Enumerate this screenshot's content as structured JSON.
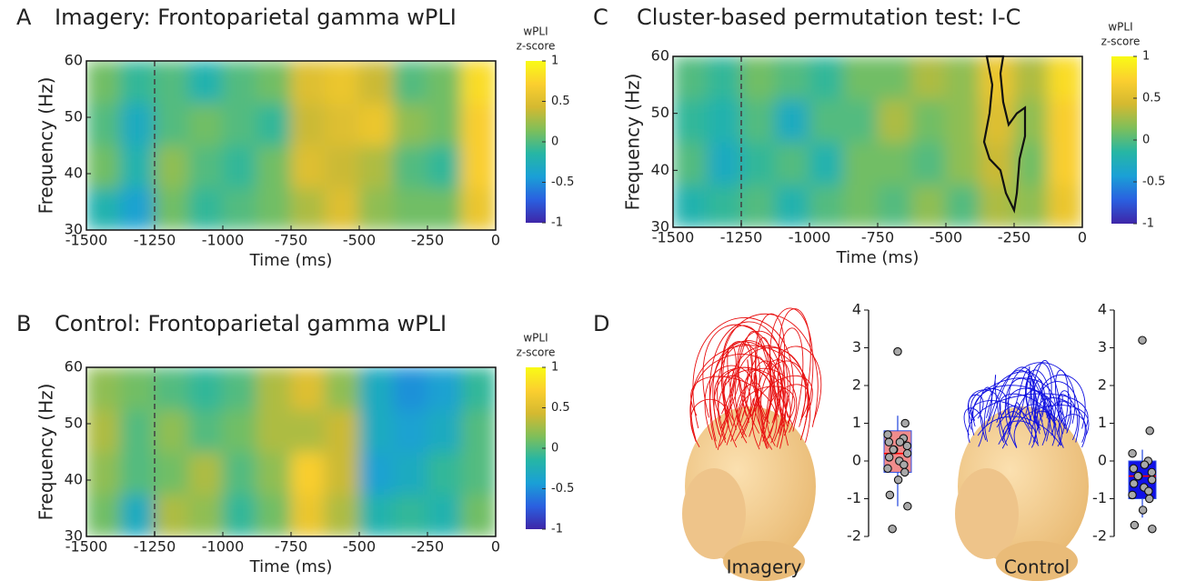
{
  "chart_data": [
    {
      "type": "heatmap",
      "label": "A",
      "title": "Imagery: Frontoparietal gamma wPLI",
      "xlabel": "Time (ms)",
      "ylabel": "Frequency (Hz)",
      "xlim": [
        -1500,
        0
      ],
      "xticks": [
        -1500,
        -1250,
        -1000,
        -750,
        -500,
        -250,
        0
      ],
      "ylim": [
        30,
        60
      ],
      "yticks": [
        30,
        40,
        50,
        60
      ],
      "marker_x": -1250,
      "colorbar_label": [
        "wPLI",
        "z-score"
      ],
      "clim": [
        -1,
        1
      ],
      "cticks": [
        1,
        0.5,
        0,
        -0.5,
        -1
      ],
      "colormap": [
        "#3e26a8",
        "#2a60e0",
        "#1aa0d6",
        "#26b6a4",
        "#7ebf5a",
        "#d4b930",
        "#fbcf2f",
        "#f9fb15"
      ],
      "z": [
        [
          -0.2,
          -0.4,
          0.1,
          -0.1,
          0.0,
          0.1,
          0.3,
          0.5,
          0.2,
          0.1,
          0.1,
          0.6
        ],
        [
          0.1,
          -0.2,
          0.2,
          0.0,
          -0.1,
          0.1,
          0.5,
          0.4,
          0.3,
          0.0,
          -0.1,
          0.7
        ],
        [
          0.0,
          -0.3,
          0.0,
          0.1,
          0.0,
          -0.1,
          0.4,
          0.5,
          0.6,
          0.2,
          0.1,
          0.7
        ],
        [
          0.1,
          -0.1,
          0.0,
          -0.2,
          0.0,
          0.1,
          0.5,
          0.6,
          0.4,
          0.0,
          0.1,
          0.8
        ]
      ]
    },
    {
      "type": "heatmap",
      "label": "B",
      "title": "Control: Frontoparietal gamma wPLI",
      "xlabel": "Time (ms)",
      "ylabel": "Frequency (Hz)",
      "xlim": [
        -1500,
        0
      ],
      "xticks": [
        -1500,
        -1250,
        -1000,
        -750,
        -500,
        -250,
        0
      ],
      "ylim": [
        30,
        60
      ],
      "yticks": [
        30,
        40,
        50,
        60
      ],
      "marker_x": -1250,
      "colorbar_label": [
        "wPLI",
        "z-score"
      ],
      "clim": [
        -1,
        1
      ],
      "cticks": [
        1,
        0.5,
        0,
        -0.5,
        -1
      ],
      "colormap": [
        "#3e26a8",
        "#2a60e0",
        "#1aa0d6",
        "#26b6a4",
        "#7ebf5a",
        "#d4b930",
        "#fbcf2f",
        "#f9fb15"
      ],
      "z": [
        [
          0.1,
          -0.3,
          0.3,
          0.2,
          -0.1,
          0.1,
          0.6,
          0.3,
          -0.2,
          -0.1,
          -0.2,
          0.1
        ],
        [
          0.2,
          0.0,
          0.1,
          0.3,
          0.0,
          0.2,
          0.7,
          0.4,
          -0.4,
          -0.3,
          -0.1,
          0.0
        ],
        [
          0.3,
          0.0,
          0.2,
          0.0,
          0.1,
          0.3,
          0.3,
          0.4,
          -0.3,
          -0.4,
          -0.3,
          0.0
        ],
        [
          0.2,
          0.1,
          0.0,
          -0.1,
          0.0,
          0.3,
          0.5,
          0.2,
          -0.3,
          -0.5,
          -0.4,
          -0.1
        ]
      ]
    },
    {
      "type": "heatmap",
      "label": "C",
      "title": "Cluster-based permutation test: I-C",
      "xlabel": "Time (ms)",
      "ylabel": "Frequency (Hz)",
      "xlim": [
        -1500,
        0
      ],
      "xticks": [
        -1500,
        -1250,
        -1000,
        -750,
        -500,
        -250,
        0
      ],
      "ylim": [
        30,
        60
      ],
      "yticks": [
        30,
        40,
        50,
        60
      ],
      "marker_x": -1250,
      "colorbar_label": [
        "wPLI",
        "z-score"
      ],
      "clim": [
        -1,
        1
      ],
      "cticks": [
        1,
        0.5,
        0,
        -0.5,
        -1
      ],
      "colormap": [
        "#3e26a8",
        "#2a60e0",
        "#1aa0d6",
        "#26b6a4",
        "#7ebf5a",
        "#d4b930",
        "#fbcf2f",
        "#f9fb15"
      ],
      "z": [
        [
          -0.2,
          -0.1,
          0.0,
          -0.2,
          0.0,
          0.1,
          0.0,
          0.2,
          0.0,
          0.3,
          0.2,
          0.6
        ],
        [
          0.0,
          -0.3,
          -0.1,
          0.0,
          -0.2,
          0.1,
          0.1,
          0.0,
          0.2,
          0.4,
          0.1,
          0.7
        ],
        [
          -0.1,
          -0.2,
          0.0,
          -0.3,
          0.0,
          0.0,
          0.3,
          0.1,
          0.2,
          0.5,
          0.2,
          0.7
        ],
        [
          0.0,
          -0.1,
          0.1,
          0.0,
          -0.1,
          0.1,
          0.1,
          0.3,
          0.2,
          0.6,
          0.3,
          0.8
        ]
      ],
      "cluster_x": [
        -350,
        -330,
        -340,
        -360,
        -340,
        -300,
        -280,
        -250,
        -240,
        -230,
        -210,
        -210,
        -240,
        -270,
        -290,
        -300,
        -290
      ],
      "cluster_y": [
        60,
        55,
        50,
        45,
        42,
        40,
        36,
        33,
        36,
        42,
        46,
        51,
        50,
        48,
        52,
        57,
        60
      ]
    },
    {
      "type": "box",
      "label": "D",
      "ylim": [
        -2,
        4
      ],
      "yticks": [
        -2,
        -1,
        0,
        1,
        2,
        3,
        4
      ],
      "groups": [
        {
          "name": "Imagery",
          "color": "#f08c8c",
          "line_color": "#3050e0",
          "median_color": "#ff0000",
          "network_color": "#e81010",
          "q1": -0.3,
          "median": 0.2,
          "q3": 0.8,
          "whislo": -1.2,
          "whishi": 1.2,
          "points": [
            2.9,
            1.0,
            0.7,
            0.6,
            0.5,
            0.5,
            0.4,
            0.3,
            0.3,
            0.2,
            0.1,
            0.0,
            -0.1,
            -0.2,
            -0.3,
            -0.5,
            -0.9,
            -1.2,
            -1.8
          ]
        },
        {
          "name": "Control",
          "color": "#1010e8",
          "line_color": "#3050e0",
          "median_color": "#ff0000",
          "network_color": "#1010e0",
          "q1": -1.0,
          "median": -0.4,
          "q3": 0.0,
          "whislo": -1.5,
          "whishi": 0.3,
          "points": [
            3.2,
            0.8,
            0.2,
            0.0,
            -0.1,
            -0.2,
            -0.3,
            -0.4,
            -0.4,
            -0.5,
            -0.6,
            -0.7,
            -0.8,
            -0.9,
            -1.0,
            -1.3,
            -1.7,
            -1.8
          ]
        }
      ]
    }
  ]
}
